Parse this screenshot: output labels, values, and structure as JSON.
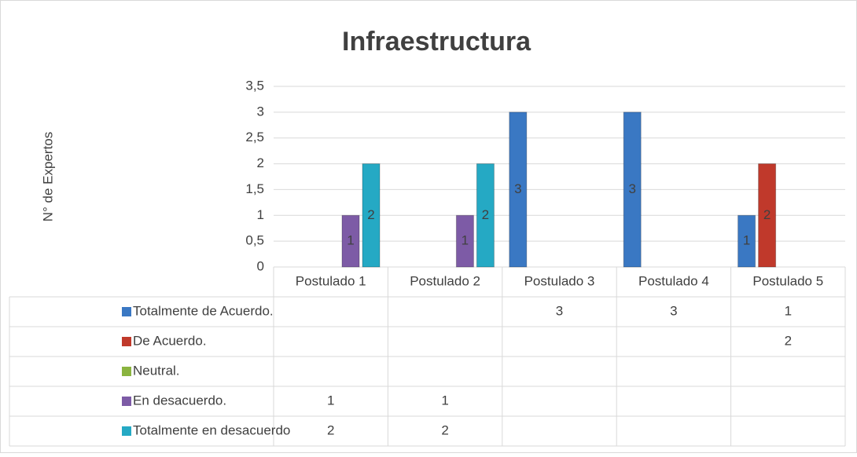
{
  "chart_data": {
    "type": "bar",
    "title": "Infraestructura",
    "y_label": "N° de Expertos",
    "categories": [
      "Postulado 1",
      "Postulado 2",
      "Postulado 3",
      "Postulado 4",
      "Postulado 5"
    ],
    "series": [
      {
        "name": "Totalmente de Acuerdo.",
        "color": "#3a78c3",
        "values": [
          null,
          null,
          3,
          3,
          1
        ]
      },
      {
        "name": "De Acuerdo.",
        "color": "#c0392b",
        "values": [
          null,
          null,
          null,
          null,
          2
        ]
      },
      {
        "name": "Neutral.",
        "color": "#8ab43f",
        "values": [
          null,
          null,
          null,
          null,
          null
        ]
      },
      {
        "name": "En desacuerdo.",
        "color": "#7d5ba6",
        "values": [
          1,
          1,
          null,
          null,
          null
        ]
      },
      {
        "name": "Totalmente en desacuerdo",
        "color": "#25a9c4",
        "values": [
          2,
          2,
          null,
          null,
          null
        ]
      }
    ],
    "ylim": [
      0,
      3.5
    ],
    "yticks": [
      0,
      {
        "value": 0.5,
        "label": "0,5"
      },
      1,
      {
        "value": 1.5,
        "label": "1,5"
      },
      2,
      {
        "value": 2.5,
        "label": "2,5"
      },
      3,
      {
        "value": 3.5,
        "label": "3,5"
      }
    ],
    "grid": true,
    "data_table": true
  }
}
